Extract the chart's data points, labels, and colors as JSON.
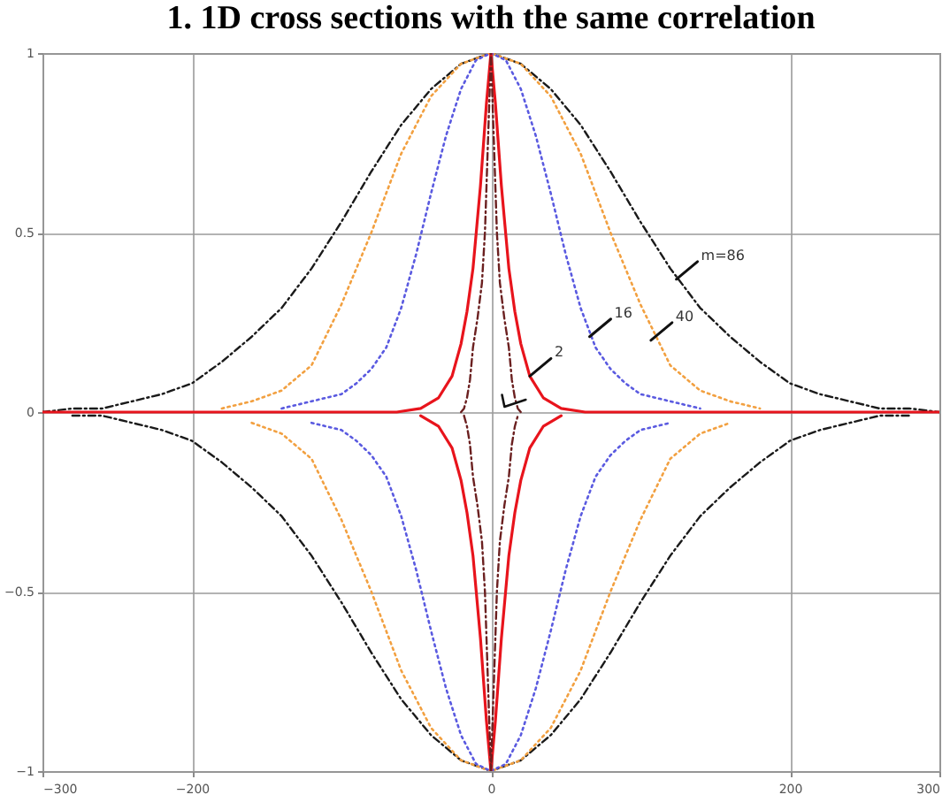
{
  "chart_data": {
    "type": "line",
    "title": "1. 1D cross sections with the same correlation",
    "xlim": [
      -300,
      300
    ],
    "xticks": [
      -300,
      -200,
      0,
      200,
      300
    ],
    "ylim": [
      -1,
      1
    ],
    "yticks": [
      -1,
      -0.5,
      0,
      0.5,
      1
    ],
    "grid": true,
    "series": [
      {
        "color": "#1a1a1a",
        "line_style": "dashed",
        "x": [
          -300,
          -280,
          -260,
          -240,
          -220,
          -200,
          -180,
          -160,
          -140,
          -120,
          -100,
          -80,
          -60,
          -40,
          -20,
          0,
          20,
          40,
          60,
          80,
          100,
          120,
          140,
          160,
          180,
          200,
          220,
          240,
          260,
          280,
          300
        ],
        "values": [
          0,
          0.01,
          0.01,
          0.03,
          0.05,
          0.08,
          0.14,
          0.21,
          0.29,
          0.4,
          0.53,
          0.67,
          0.8,
          0.9,
          0.97,
          1,
          0.97,
          0.9,
          0.8,
          0.67,
          0.53,
          0.4,
          0.29,
          0.21,
          0.14,
          0.08,
          0.05,
          0.03,
          0.01,
          0.01,
          0
        ]
      },
      {
        "color": "#1a1a1a",
        "line_style": "dashed",
        "x": [
          -280,
          -260,
          -240,
          -220,
          -200,
          -180,
          -160,
          -140,
          -120,
          -100,
          -80,
          -60,
          -40,
          -20,
          0,
          20,
          40,
          60,
          80,
          100,
          120,
          140,
          160,
          180,
          200,
          220,
          240,
          260,
          280
        ],
        "values": [
          -0.01,
          -0.01,
          -0.03,
          -0.05,
          -0.08,
          -0.14,
          -0.21,
          -0.29,
          -0.4,
          -0.53,
          -0.67,
          -0.8,
          -0.9,
          -0.97,
          -1,
          -0.97,
          -0.9,
          -0.8,
          -0.67,
          -0.53,
          -0.4,
          -0.29,
          -0.21,
          -0.14,
          -0.08,
          -0.05,
          -0.03,
          -0.01,
          -0.01
        ]
      },
      {
        "color": "#f2a040",
        "line_style": "dotted",
        "x": [
          -180,
          -160,
          -140,
          -120,
          -100,
          -80,
          -60,
          -40,
          -20,
          0,
          20,
          40,
          60,
          80,
          100,
          120,
          140,
          160,
          180
        ],
        "values": [
          0.01,
          0.03,
          0.06,
          0.13,
          0.3,
          0.5,
          0.72,
          0.88,
          0.97,
          1,
          0.97,
          0.88,
          0.72,
          0.5,
          0.3,
          0.13,
          0.06,
          0.03,
          0.01
        ]
      },
      {
        "color": "#f2a040",
        "line_style": "dotted",
        "x": [
          -160,
          -140,
          -120,
          -100,
          -80,
          -60,
          -40,
          -20,
          0,
          20,
          40,
          60,
          80,
          100,
          120,
          140,
          160
        ],
        "values": [
          -0.03,
          -0.06,
          -0.13,
          -0.3,
          -0.5,
          -0.72,
          -0.88,
          -0.97,
          -1,
          -0.97,
          -0.88,
          -0.72,
          -0.5,
          -0.3,
          -0.13,
          -0.06,
          -0.03
        ]
      },
      {
        "color": "#5a5ae0",
        "line_style": "dotted",
        "x": [
          -140,
          -120,
          -100,
          -90,
          -80,
          -70,
          -60,
          -50,
          -40,
          -30,
          -20,
          -10,
          0,
          10,
          20,
          30,
          40,
          50,
          60,
          70,
          80,
          90,
          100,
          120,
          140
        ],
        "values": [
          0.01,
          0.03,
          0.05,
          0.08,
          0.12,
          0.18,
          0.29,
          0.44,
          0.61,
          0.77,
          0.9,
          0.98,
          1,
          0.98,
          0.9,
          0.77,
          0.61,
          0.44,
          0.29,
          0.18,
          0.12,
          0.08,
          0.05,
          0.03,
          0.01
        ]
      },
      {
        "color": "#5a5ae0",
        "line_style": "dotted",
        "x": [
          -120,
          -100,
          -90,
          -80,
          -70,
          -60,
          -50,
          -40,
          -30,
          -20,
          -10,
          0,
          10,
          20,
          30,
          40,
          50,
          60,
          70,
          80,
          90,
          100,
          120
        ],
        "values": [
          -0.03,
          -0.05,
          -0.08,
          -0.12,
          -0.18,
          -0.29,
          -0.44,
          -0.61,
          -0.77,
          -0.9,
          -0.98,
          -1,
          -0.98,
          -0.9,
          -0.77,
          -0.61,
          -0.44,
          -0.29,
          -0.18,
          -0.12,
          -0.08,
          -0.05,
          -0.03
        ]
      },
      {
        "color": "#e8141c",
        "line_style": "solid",
        "x": [
          -300,
          -200,
          -100,
          -63,
          -47,
          -35,
          -26,
          -20,
          -16,
          -12,
          -7,
          -3,
          0,
          3,
          7,
          12,
          16,
          20,
          26,
          35,
          47,
          63,
          100,
          200,
          300
        ],
        "values": [
          0,
          0,
          0,
          0,
          0.01,
          0.04,
          0.1,
          0.19,
          0.28,
          0.4,
          0.63,
          0.86,
          1,
          0.86,
          0.63,
          0.4,
          0.28,
          0.19,
          0.1,
          0.04,
          0.01,
          0,
          0,
          0,
          0
        ]
      },
      {
        "color": "#e8141c",
        "line_style": "solid",
        "x": [
          -47,
          -35,
          -26,
          -20,
          -16,
          -12,
          -7,
          -3,
          0,
          3,
          7,
          12,
          16,
          20,
          26,
          35,
          47
        ],
        "values": [
          -0.01,
          -0.04,
          -0.1,
          -0.19,
          -0.28,
          -0.4,
          -0.63,
          -0.86,
          -1,
          -0.86,
          -0.63,
          -0.4,
          -0.28,
          -0.19,
          -0.1,
          -0.04,
          -0.01
        ]
      },
      {
        "color": "#6b2020",
        "line_style": "dashed",
        "x": [
          -20,
          -18,
          -16,
          -14,
          -12,
          -9,
          -6,
          -4,
          -2,
          0,
          2,
          4,
          6,
          9,
          12,
          14,
          16,
          18,
          20
        ],
        "values": [
          0,
          0.01,
          0.04,
          0.09,
          0.18,
          0.26,
          0.36,
          0.5,
          0.75,
          1,
          0.75,
          0.5,
          0.36,
          0.26,
          0.18,
          0.09,
          0.04,
          0.01,
          0
        ]
      },
      {
        "color": "#6b2020",
        "line_style": "dashed",
        "x": [
          -18,
          -16,
          -14,
          -12,
          -9,
          -6,
          -4,
          -2,
          0,
          2,
          4,
          6,
          9,
          12,
          14,
          16,
          18
        ],
        "values": [
          -0.01,
          -0.04,
          -0.09,
          -0.18,
          -0.26,
          -0.36,
          -0.5,
          -0.75,
          -1,
          -0.75,
          -0.5,
          -0.36,
          -0.26,
          -0.18,
          -0.09,
          -0.04,
          -0.01
        ]
      }
    ],
    "annotations": [
      {
        "text": "m=86",
        "x": 124,
        "y": 0.37
      },
      {
        "text": "40",
        "x": 107,
        "y": 0.2
      },
      {
        "text": "16",
        "x": 66,
        "y": 0.21
      },
      {
        "text": "2",
        "x": 26,
        "y": 0.1
      }
    ]
  }
}
